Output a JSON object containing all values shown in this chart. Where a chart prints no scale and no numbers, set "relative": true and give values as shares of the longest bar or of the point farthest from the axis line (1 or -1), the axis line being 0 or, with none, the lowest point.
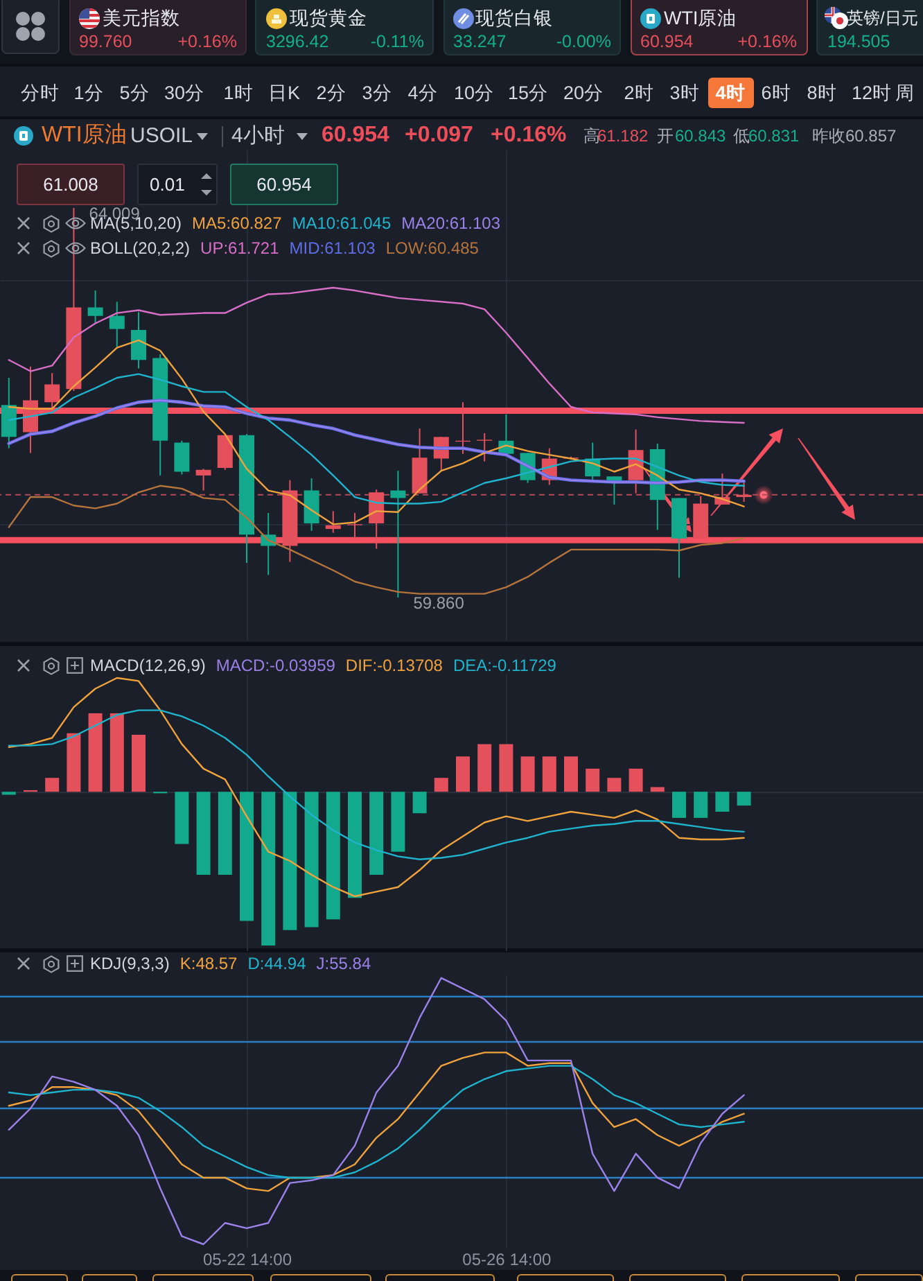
{
  "chart_data": [
    {
      "type": "other",
      "annotations": [
        "美元指数",
        "99.760",
        "+0.16%",
        "现货黄金",
        "3296.42",
        "-0.11%",
        "现货白银",
        "33.247",
        "-0.00%",
        "WTI原油",
        "60.954",
        "+0.16%",
        "英镑/日元",
        "194.505",
        "分时",
        "1分",
        "5分",
        "30分",
        "1时",
        "日K",
        "2分",
        "3分",
        "4分",
        "10分",
        "15分",
        "20分",
        "2时",
        "3时",
        "4时",
        "6时",
        "8时",
        "12时",
        "周",
        "WTI原油",
        "USOIL",
        "4小时",
        "60.954",
        "+0.097",
        "+0.16%",
        "高",
        "61.182",
        "开",
        "60.843",
        "低",
        "60.831",
        "昨收",
        "60.857",
        "61.008",
        "0.01",
        "60.954"
      ]
    },
    {
      "type": "candlestick",
      "categories": [
        null,
        null,
        null,
        null,
        null,
        null,
        null,
        null,
        null,
        null,
        null,
        null,
        null,
        null,
        null,
        null,
        null,
        null,
        null,
        null,
        null,
        null,
        null,
        null,
        null,
        null,
        null,
        null,
        null,
        null,
        null,
        null,
        null,
        null,
        null
      ],
      "ohlc": [
        [
          61.91,
          62.2,
          61.45,
          61.57
        ],
        [
          61.62,
          62.32,
          61.4,
          61.96
        ],
        [
          61.94,
          62.25,
          61.84,
          62.13
        ],
        [
          62.08,
          64.009,
          62.06,
          62.95
        ],
        [
          62.95,
          63.13,
          62.78,
          62.86
        ],
        [
          62.86,
          63.01,
          62.53,
          62.72
        ],
        [
          62.71,
          62.9,
          62.3,
          62.39
        ],
        [
          62.41,
          62.45,
          61.16,
          61.53
        ],
        [
          61.51,
          61.53,
          61.17,
          61.2
        ],
        [
          61.16,
          61.23,
          61.0,
          61.22
        ],
        [
          61.24,
          61.6,
          61.22,
          61.59
        ],
        [
          61.59,
          61.6,
          60.23,
          60.53
        ],
        [
          60.53,
          60.76,
          60.1,
          60.41
        ],
        [
          60.41,
          61.11,
          60.24,
          61.0
        ],
        [
          61.0,
          61.13,
          60.57,
          60.65
        ],
        [
          60.59,
          60.78,
          60.55,
          60.63
        ],
        [
          60.63,
          60.76,
          60.47,
          60.64
        ],
        [
          60.65,
          61.01,
          60.38,
          60.98
        ],
        [
          61.0,
          61.21,
          59.86,
          60.92
        ],
        [
          60.97,
          61.66,
          60.97,
          61.35
        ],
        [
          61.34,
          61.57,
          61.21,
          61.57
        ],
        [
          61.52,
          61.94,
          61.39,
          61.53
        ],
        [
          61.53,
          61.61,
          61.31,
          61.54
        ],
        [
          61.53,
          61.81,
          61.39,
          61.39
        ],
        [
          61.4,
          61.4,
          61.08,
          61.11
        ],
        [
          61.11,
          61.45,
          61.06,
          61.34
        ],
        [
          61.34,
          61.36,
          61.33,
          61.35
        ],
        [
          61.34,
          61.51,
          61.11,
          61.15
        ],
        [
          61.15,
          61.15,
          60.85,
          61.1
        ],
        [
          61.11,
          61.65,
          60.97,
          61.43
        ],
        [
          61.44,
          61.5,
          60.58,
          60.9
        ],
        [
          60.92,
          60.92,
          60.07,
          60.49
        ],
        [
          60.49,
          60.94,
          60.49,
          60.86
        ],
        [
          60.85,
          61.18,
          60.85,
          60.93
        ],
        [
          60.93,
          61.1,
          60.88,
          60.954
        ]
      ],
      "colors": [
        "#12a98c",
        "#e4515d",
        "#e4515d",
        "#e4515d",
        "#12a98c",
        "#12a98c",
        "#12a98c",
        "#12a98c",
        "#12a98c",
        "#e4515d",
        "#e4515d",
        "#12a98c",
        "#12a98c",
        "#e4515d",
        "#12a98c",
        "#e4515d",
        "#e4515d",
        "#e4515d",
        "#12a98c",
        "#e4515d",
        "#e4515d",
        "#e4515d",
        "#e4515d",
        "#12a98c",
        "#12a98c",
        "#e4515d",
        "#e4515d",
        "#12a98c",
        "#12a98c",
        "#e4515d",
        "#12a98c",
        "#12a98c",
        "#e4515d",
        "#e4515d",
        "#e4515d"
      ],
      "series": [
        {
          "name": "MA5:60.827",
          "type": "line",
          "color": "#f0a23c",
          "values": [
            61.89,
            61.87,
            61.87,
            62.11,
            62.31,
            62.52,
            62.6,
            62.49,
            62.19,
            61.84,
            61.6,
            61.23,
            61.0,
            60.95,
            60.79,
            60.64,
            60.66,
            60.78,
            60.77,
            61.01,
            61.21,
            61.29,
            61.4,
            61.48,
            61.42,
            61.38,
            61.34,
            61.29,
            61.2,
            61.28,
            61.16,
            61.01,
            60.97,
            60.91,
            60.83
          ]
        },
        {
          "name": "MA10:61.045",
          "type": "line",
          "color": "#20b4cc",
          "values": [
            61.75,
            61.79,
            61.83,
            61.99,
            62.09,
            62.2,
            62.24,
            62.18,
            62.11,
            62.05,
            62.05,
            61.89,
            61.75,
            61.57,
            61.38,
            61.16,
            60.93,
            60.87,
            60.86,
            60.86,
            60.88,
            60.98,
            61.08,
            61.13,
            61.19,
            61.25,
            61.31,
            61.33,
            61.34,
            61.34,
            61.25,
            61.16,
            61.09,
            61.06,
            61.05
          ]
        },
        {
          "name": "MA20:61.103",
          "type": "line",
          "color": "#9b82e8",
          "values": [
            61.5,
            61.6,
            61.63,
            61.72,
            61.79,
            61.88,
            61.94,
            61.96,
            61.94,
            61.9,
            61.89,
            61.82,
            61.77,
            61.75,
            61.7,
            61.66,
            61.59,
            61.54,
            61.49,
            61.46,
            61.45,
            61.45,
            61.41,
            61.38,
            61.26,
            61.14,
            61.11,
            61.1,
            61.09,
            61.09,
            61.08,
            61.09,
            61.11,
            61.11,
            61.1
          ]
        },
        {
          "name": "UP:61.721",
          "type": "line",
          "color": "#d86ec6",
          "values": [
            62.39,
            62.27,
            62.33,
            62.63,
            62.78,
            62.89,
            62.92,
            62.87,
            62.88,
            62.89,
            62.89,
            63.0,
            63.09,
            63.1,
            63.13,
            63.16,
            63.13,
            63.09,
            63.05,
            63.03,
            63.01,
            62.99,
            62.93,
            62.68,
            62.41,
            62.14,
            61.89,
            61.83,
            61.82,
            61.81,
            61.78,
            61.76,
            61.74,
            61.73,
            61.72
          ]
        },
        {
          "name": "MID:61.103",
          "type": "line",
          "color": "#5f6ee6",
          "values": [
            61.5,
            61.6,
            61.63,
            61.72,
            61.79,
            61.88,
            61.94,
            61.96,
            61.94,
            61.9,
            61.89,
            61.82,
            61.77,
            61.75,
            61.7,
            61.66,
            61.59,
            61.54,
            61.49,
            61.46,
            61.45,
            61.45,
            61.41,
            61.38,
            61.26,
            61.14,
            61.11,
            61.1,
            61.09,
            61.09,
            61.08,
            61.09,
            61.11,
            61.11,
            61.1
          ]
        },
        {
          "name": "LOW:60.485",
          "type": "line",
          "color": "#b5743c",
          "values": [
            60.61,
            60.93,
            60.93,
            60.84,
            60.81,
            60.86,
            60.98,
            61.05,
            61.02,
            60.92,
            60.9,
            60.71,
            60.47,
            60.37,
            60.26,
            60.15,
            60.03,
            59.97,
            59.92,
            59.9,
            59.9,
            59.9,
            59.9,
            59.97,
            60.08,
            60.23,
            60.37,
            60.37,
            60.37,
            60.37,
            60.37,
            60.36,
            60.42,
            60.44,
            60.49
          ]
        }
      ],
      "ref_lines": [
        {
          "axis": "y",
          "value": 60.954,
          "color": "#b24a55",
          "line_style": "dashed"
        },
        {
          "axis": "y",
          "value": 61.85,
          "color": "#f4505f"
        },
        {
          "axis": "y",
          "value": 60.47,
          "color": "#f4505f"
        }
      ],
      "annotations": [
        "MA(5,10,20)",
        "BOLL(20,2,2)",
        "64.009",
        "59.860"
      ],
      "yticks": [
        {
          "value": 63.24,
          "label": null
        },
        {
          "value": 60.64,
          "label": null
        }
      ],
      "grid": true,
      "tick_labels": false
    },
    {
      "type": "bar",
      "relative": true,
      "categories": [
        null,
        null,
        null,
        null,
        null,
        null,
        null,
        null,
        null,
        null,
        null,
        null,
        null,
        null,
        null,
        null,
        null,
        null,
        null,
        null,
        null,
        null,
        null,
        null,
        null,
        null,
        null,
        null,
        null,
        null,
        null,
        null,
        null,
        null,
        null
      ],
      "annotations": [
        "MACD(12,26,9)",
        "MACD:-0.03959"
      ],
      "series": [
        {
          "type": "bar",
          "colors": [
            "#12a98c",
            "#e4515d",
            "#e4515d",
            "#e4515d",
            "#e4515d",
            "#e4515d",
            "#e4515d",
            "#12a98c",
            "#12a98c",
            "#12a98c",
            "#12a98c",
            "#12a98c",
            "#12a98c",
            "#12a98c",
            "#12a98c",
            "#12a98c",
            "#12a98c",
            "#12a98c",
            "#12a98c",
            "#12a98c",
            "#e4515d",
            "#e4515d",
            "#e4515d",
            "#e4515d",
            "#e4515d",
            "#e4515d",
            "#e4515d",
            "#e4515d",
            "#e4515d",
            "#e4515d",
            "#e4515d",
            "#12a98c",
            "#12a98c",
            "#12a98c",
            "#12a98c"
          ],
          "values": [
            -0.02,
            0.01,
            0.09,
            0.38,
            0.51,
            0.51,
            0.37,
            -0.01,
            -0.34,
            -0.54,
            -0.54,
            -0.84,
            -1,
            -0.9,
            -0.88,
            -0.83,
            -0.69,
            -0.54,
            -0.39,
            -0.14,
            0.09,
            0.23,
            0.31,
            0.31,
            0.23,
            0.23,
            0.23,
            0.15,
            0.09,
            0.15,
            0.03,
            -0.17,
            -0.17,
            -0.13,
            -0.09
          ]
        },
        {
          "name": "DIF:-0.13708",
          "type": "line",
          "color": "#f0a23c",
          "values": [
            0.29,
            0.31,
            0.35,
            0.55,
            0.67,
            0.74,
            0.72,
            0.53,
            0.31,
            0.15,
            0.08,
            -0.16,
            -0.39,
            -0.45,
            -0.54,
            -0.62,
            -0.68,
            -0.65,
            -0.62,
            -0.51,
            -0.38,
            -0.29,
            -0.2,
            -0.16,
            -0.19,
            -0.16,
            -0.13,
            -0.15,
            -0.17,
            -0.12,
            -0.18,
            -0.3,
            -0.31,
            -0.31,
            -0.3
          ]
        },
        {
          "name": "DEA:-0.11729",
          "type": "line",
          "color": "#20b4cc",
          "values": [
            0.3,
            0.3,
            0.31,
            0.36,
            0.43,
            0.5,
            0.53,
            0.53,
            0.49,
            0.43,
            0.35,
            0.24,
            0.1,
            -0.03,
            -0.15,
            -0.25,
            -0.33,
            -0.38,
            -0.42,
            -0.44,
            -0.43,
            -0.41,
            -0.37,
            -0.33,
            -0.3,
            -0.26,
            -0.24,
            -0.22,
            -0.21,
            -0.19,
            -0.19,
            -0.21,
            -0.23,
            -0.25,
            -0.26
          ]
        }
      ],
      "grid": "x",
      "tick_labels": false
    },
    {
      "type": "line",
      "relative": true,
      "categories": [
        null,
        null,
        null,
        null,
        null,
        null,
        null,
        null,
        null,
        null,
        null,
        "05-22 14:00",
        null,
        null,
        null,
        null,
        null,
        null,
        null,
        null,
        null,
        null,
        null,
        "05-26 14:00",
        null,
        null,
        null,
        null,
        null,
        null,
        null,
        null,
        null,
        null,
        null
      ],
      "annotations": [
        "KDJ(9,3,3)"
      ],
      "series": [
        {
          "name": "K:48.57",
          "color": "#f0a23c",
          "values": [
            0.52,
            0.54,
            0.59,
            0.59,
            0.58,
            0.56,
            0.5,
            0.4,
            0.3,
            0.25,
            0.25,
            0.21,
            0.2,
            0.25,
            0.25,
            0.26,
            0.3,
            0.4,
            0.47,
            0.57,
            0.67,
            0.7,
            0.72,
            0.72,
            0.67,
            0.68,
            0.68,
            0.53,
            0.44,
            0.47,
            0.41,
            0.37,
            0.41,
            0.46,
            0.49
          ]
        },
        {
          "name": "D:44.94",
          "color": "#20b4cc",
          "values": [
            0.57,
            0.56,
            0.57,
            0.58,
            0.58,
            0.57,
            0.55,
            0.5,
            0.44,
            0.37,
            0.33,
            0.29,
            0.26,
            0.25,
            0.25,
            0.25,
            0.27,
            0.31,
            0.36,
            0.43,
            0.51,
            0.58,
            0.62,
            0.65,
            0.66,
            0.67,
            0.67,
            0.62,
            0.56,
            0.53,
            0.49,
            0.45,
            0.44,
            0.45,
            0.46
          ]
        },
        {
          "name": "J:55.84",
          "color": "#9b82e8",
          "values": [
            0.43,
            0.51,
            0.63,
            0.61,
            0.58,
            0.52,
            0.41,
            0.21,
            0.03,
            0,
            0.08,
            0.06,
            0.08,
            0.23,
            0.24,
            0.26,
            0.37,
            0.57,
            0.67,
            0.85,
            1,
            0.96,
            0.92,
            0.84,
            0.69,
            0.69,
            0.69,
            0.34,
            0.2,
            0.34,
            0.25,
            0.21,
            0.38,
            0.49,
            0.56
          ]
        }
      ],
      "ref_lines": [
        {
          "axis": "y",
          "value": 0.93,
          "color": "#2a7fc4"
        },
        {
          "axis": "y",
          "value": 0.76,
          "color": "#2a7fc4"
        },
        {
          "axis": "y",
          "value": 0.51,
          "color": "#2a7fc4"
        },
        {
          "axis": "y",
          "value": 0.25,
          "color": "#2a7fc4"
        }
      ],
      "grid": "x",
      "tick_labels": "x"
    }
  ]
}
